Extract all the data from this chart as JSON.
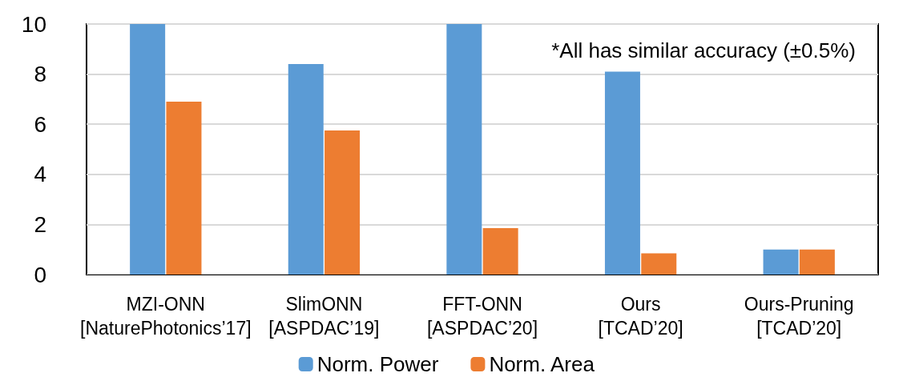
{
  "chart_data": {
    "type": "bar",
    "categories": [
      "MZI-ONN\n[NaturePhotonics’17]",
      "SlimONN\n[ASPDAC’19]",
      "FFT-ONN\n[ASPDAC’20]",
      "Ours\n[TCAD’20]",
      "Ours-Pruning\n[TCAD’20]"
    ],
    "series": [
      {
        "name": "Norm. Power",
        "color": "#5b9bd5",
        "values": [
          10,
          8.4,
          10,
          8.1,
          1
        ]
      },
      {
        "name": "Norm. Area",
        "color": "#ed7d31",
        "values": [
          6.9,
          5.75,
          1.85,
          0.85,
          1
        ]
      }
    ],
    "ylim": [
      0,
      10
    ],
    "yticks": [
      0,
      2,
      4,
      6,
      8,
      10
    ],
    "grid": "y",
    "legend": "bottom",
    "annotations": [
      "*All has similar accuracy (±0.5%)"
    ]
  }
}
